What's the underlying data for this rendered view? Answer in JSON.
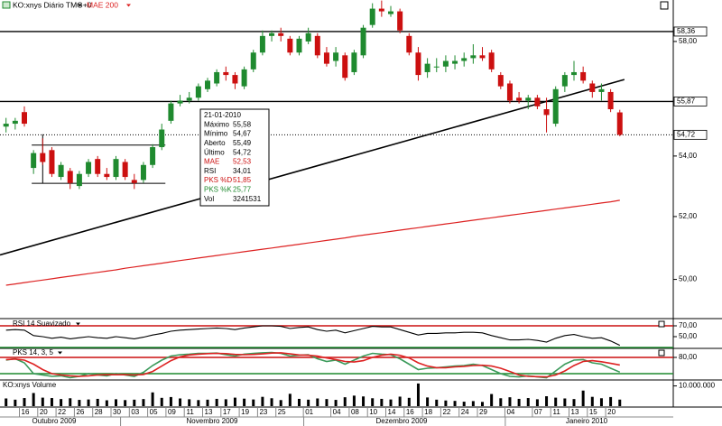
{
  "chart_data": [
    {
      "type": "candlestick",
      "title": "KO:xnys Diário TMG+0",
      "log": true,
      "ylim": [
        48.82,
        59.52
      ],
      "yticks": [
        {
          "value": 50,
          "label": "50,00"
        },
        {
          "value": 52,
          "label": "52,00"
        },
        {
          "value": 54,
          "label": "54,00"
        },
        {
          "value": 58,
          "label": "58,00"
        }
      ],
      "categories": [
        null,
        null,
        "16",
        null,
        "20",
        null,
        "22",
        null,
        "26",
        null,
        "28",
        null,
        "30",
        null,
        "03",
        null,
        "05",
        null,
        "09",
        null,
        "11",
        null,
        "13",
        null,
        "17",
        null,
        "19",
        null,
        "23",
        null,
        "25",
        null,
        null,
        "01",
        null,
        null,
        "04",
        null,
        "08",
        null,
        "10",
        null,
        "14",
        null,
        "16",
        null,
        "18",
        null,
        "22",
        null,
        "24",
        null,
        "29",
        null,
        null,
        "04",
        null,
        null,
        "07",
        null,
        "11",
        null,
        "13",
        null,
        "15",
        null,
        "20",
        null
      ],
      "months": [
        "Outubro 2009",
        "Novembro 2009",
        "Dezembro 2009",
        "Janeiro 2010"
      ],
      "up_color": "#1f8a2f",
      "down_color": "#cc1010",
      "ohlc": {
        "open": [
          55.0,
          55.1,
          55.5,
          53.6,
          54.1,
          54.2,
          53.3,
          53.5,
          53.0,
          53.4,
          53.9,
          53.4,
          53.3,
          53.8,
          53.2,
          53.2,
          53.7,
          54.3,
          55.2,
          55.8,
          55.9,
          56.0,
          56.3,
          56.5,
          56.9,
          56.8,
          56.4,
          57.0,
          57.6,
          58.2,
          58.3,
          58.1,
          57.6,
          58.0,
          58.2,
          57.6,
          57.3,
          57.5,
          56.9,
          57.5,
          58.6,
          59.2,
          59.0,
          59.1,
          58.2,
          57.6,
          56.9,
          57.1,
          57.1,
          57.2,
          57.3,
          57.4,
          57.5,
          57.6,
          56.8,
          56.5,
          56.0,
          55.9,
          56.0,
          55.6,
          55.1,
          56.4,
          56.8,
          56.9,
          56.5,
          56.2,
          56.2,
          55.49
        ],
        "high": [
          55.3,
          55.3,
          55.7,
          54.2,
          54.6,
          54.3,
          53.8,
          53.6,
          53.5,
          53.9,
          54.0,
          53.6,
          54.0,
          53.9,
          53.4,
          53.8,
          54.4,
          55.1,
          55.9,
          56.1,
          56.2,
          56.5,
          56.7,
          57.0,
          57.1,
          56.9,
          57.1,
          57.7,
          58.4,
          58.4,
          58.5,
          58.2,
          58.2,
          58.5,
          58.3,
          57.8,
          57.8,
          57.6,
          57.7,
          58.6,
          59.4,
          59.5,
          59.3,
          59.2,
          58.3,
          57.8,
          57.4,
          57.4,
          57.5,
          57.5,
          57.6,
          57.9,
          57.8,
          57.7,
          56.9,
          56.6,
          56.2,
          56.1,
          56.1,
          56.0,
          56.4,
          56.9,
          57.3,
          57.1,
          56.6,
          56.5,
          56.3,
          55.58
        ],
        "low": [
          54.8,
          54.9,
          55.0,
          53.4,
          53.7,
          53.3,
          53.2,
          52.9,
          52.9,
          53.3,
          53.3,
          53.2,
          53.2,
          53.2,
          52.9,
          53.1,
          53.6,
          54.2,
          55.1,
          55.7,
          55.8,
          55.9,
          56.2,
          56.4,
          56.6,
          56.3,
          56.3,
          56.9,
          57.5,
          58.0,
          58.0,
          57.5,
          57.5,
          57.9,
          57.4,
          57.1,
          57.1,
          56.6,
          56.8,
          57.4,
          58.5,
          58.9,
          58.9,
          58.3,
          57.5,
          56.6,
          56.7,
          56.9,
          56.9,
          57.0,
          57.1,
          57.2,
          57.3,
          56.9,
          56.3,
          55.8,
          55.8,
          55.6,
          55.6,
          54.8,
          55.0,
          56.2,
          56.6,
          56.5,
          56.0,
          55.9,
          55.5,
          54.67
        ],
        "close": [
          55.1,
          55.2,
          55.1,
          54.1,
          53.8,
          53.4,
          53.7,
          53.1,
          53.4,
          53.8,
          53.4,
          53.3,
          53.9,
          53.3,
          53.1,
          53.7,
          54.3,
          54.9,
          55.8,
          55.9,
          56.0,
          56.4,
          56.6,
          56.9,
          56.8,
          56.5,
          57.0,
          57.6,
          58.2,
          58.3,
          58.2,
          57.6,
          58.1,
          58.3,
          57.5,
          57.2,
          57.6,
          56.7,
          57.6,
          58.5,
          59.2,
          59.1,
          59.1,
          58.4,
          57.6,
          56.8,
          57.2,
          57.1,
          57.3,
          57.3,
          57.4,
          57.5,
          57.4,
          57.0,
          56.4,
          55.9,
          55.9,
          56.0,
          55.7,
          55.4,
          56.3,
          56.8,
          56.9,
          56.6,
          56.2,
          56.3,
          55.6,
          54.72
        ]
      },
      "series": [
        {
          "name": "MAE 200",
          "color": "#dd2222",
          "values": [
            49.82,
            49.86,
            49.9,
            49.94,
            49.98,
            50.02,
            50.06,
            50.1,
            50.14,
            50.18,
            50.22,
            50.26,
            50.3,
            50.35,
            50.39,
            50.43,
            50.47,
            50.51,
            50.55,
            50.59,
            50.63,
            50.67,
            50.71,
            50.75,
            50.79,
            50.83,
            50.87,
            50.91,
            50.95,
            50.99,
            51.03,
            51.07,
            51.11,
            51.15,
            51.19,
            51.23,
            51.27,
            51.31,
            51.36,
            51.4,
            51.44,
            51.48,
            51.52,
            51.56,
            51.6,
            51.64,
            51.68,
            51.72,
            51.76,
            51.8,
            51.84,
            51.88,
            51.92,
            51.96,
            52.0,
            52.04,
            52.08,
            52.12,
            52.16,
            52.2,
            52.24,
            52.28,
            52.32,
            52.36,
            52.4,
            52.44,
            52.48,
            52.53
          ]
        }
      ],
      "hlines": [
        {
          "value": 58.36,
          "label": "58,36",
          "style": "solid"
        },
        {
          "value": 55.87,
          "label": "55,87",
          "style": "solid"
        },
        {
          "value": 54.72,
          "label": "54,72",
          "style": "dotted"
        }
      ],
      "trendline": [
        50.77,
        56.64
      ],
      "range_lines": [
        54.37,
        53.09
      ],
      "info": {
        "date": "21-01-2010",
        "rows": [
          {
            "label": "Máximo",
            "value": "55,58",
            "color": "#000000"
          },
          {
            "label": "Mínimo",
            "value": "54,67",
            "color": "#000000"
          },
          {
            "label": "Aberto",
            "value": "55,49",
            "color": "#000000"
          },
          {
            "label": "Último",
            "value": "54,72",
            "color": "#000000"
          },
          {
            "label": "MAE",
            "value": "52,53",
            "color": "#cc1010"
          },
          {
            "label": "RSI",
            "value": "34,01",
            "color": "#000000"
          },
          {
            "label": "PKS %D",
            "value": "51,85",
            "color": "#cc1010"
          },
          {
            "label": "PKS %K",
            "value": "25,77",
            "color": "#1f8a2f"
          },
          {
            "label": "Vol",
            "value": "3241531",
            "color": "#000000"
          }
        ]
      }
    },
    {
      "type": "line",
      "title": "RSI 14 Suavizado",
      "ylim": [
        30,
        80
      ],
      "yticks": [
        {
          "value": 70,
          "label": "70,00"
        },
        {
          "value": 50,
          "label": "50,00"
        }
      ],
      "levels": [
        {
          "value": 70,
          "color": "#cc1010"
        },
        {
          "value": 30,
          "color": "#1f8a2f"
        }
      ],
      "series": [
        {
          "name": "RSI",
          "color": "#000000",
          "values": [
            62,
            63,
            62,
            52,
            50,
            47,
            49,
            46,
            48,
            50,
            48,
            47,
            50,
            48,
            46,
            49,
            53,
            56,
            60,
            62,
            63,
            64,
            65,
            66,
            65,
            63,
            66,
            68,
            70,
            70,
            69,
            65,
            67,
            68,
            63,
            60,
            62,
            57,
            61,
            65,
            69,
            68,
            68,
            63,
            58,
            53,
            56,
            56,
            57,
            57,
            58,
            58,
            57,
            52,
            48,
            44,
            44,
            45,
            43,
            40,
            47,
            52,
            54,
            50,
            47,
            48,
            42,
            34.01
          ]
        }
      ]
    },
    {
      "type": "line",
      "title": "PKS 14, 3, 5",
      "ylim": [
        0,
        110
      ],
      "yticks": [
        {
          "value": 80,
          "label": "80,00"
        }
      ],
      "levels": [
        {
          "value": 80,
          "color": "#cc1010"
        },
        {
          "value": 20,
          "color": "#1f8a2f"
        }
      ],
      "series": [
        {
          "name": "PKS %K",
          "color": "#3a9a5a",
          "values": [
            70,
            75,
            60,
            20,
            15,
            10,
            12,
            5,
            10,
            20,
            15,
            12,
            20,
            15,
            10,
            25,
            50,
            70,
            85,
            90,
            92,
            95,
            95,
            96,
            90,
            85,
            92,
            95,
            97,
            98,
            95,
            85,
            88,
            90,
            75,
            65,
            70,
            55,
            70,
            85,
            95,
            92,
            90,
            75,
            55,
            35,
            40,
            42,
            45,
            48,
            50,
            55,
            50,
            35,
            20,
            10,
            8,
            12,
            8,
            5,
            30,
            55,
            70,
            72,
            60,
            55,
            40,
            25.77
          ]
        },
        {
          "name": "PKS %D",
          "color": "#dd2222",
          "values": [
            72,
            74,
            70,
            55,
            35,
            20,
            15,
            12,
            10,
            12,
            15,
            16,
            16,
            16,
            15,
            17,
            28,
            48,
            68,
            82,
            89,
            92,
            94,
            95,
            94,
            91,
            90,
            91,
            93,
            96,
            97,
            93,
            89,
            88,
            85,
            78,
            72,
            65,
            63,
            68,
            80,
            88,
            92,
            88,
            78,
            60,
            48,
            42,
            42,
            45,
            47,
            50,
            51,
            48,
            40,
            28,
            15,
            10,
            9,
            8,
            15,
            30,
            50,
            65,
            68,
            64,
            58,
            51.85
          ]
        }
      ]
    },
    {
      "type": "volume",
      "title": "KO:xnys Volume",
      "ylim": [
        0,
        12500000
      ],
      "yticks": [
        {
          "value": 10000000,
          "label": "10.000.000"
        }
      ],
      "color": "#000000",
      "values": [
        3800000,
        3200000,
        4000000,
        6500000,
        4200000,
        4000000,
        3500000,
        3900000,
        3100000,
        3300000,
        3600000,
        2900000,
        3400000,
        3000000,
        3200000,
        3500000,
        6800000,
        4100000,
        4500000,
        3800000,
        3400000,
        3000000,
        3200000,
        3600000,
        3400000,
        4200000,
        3700000,
        3300000,
        4600000,
        3900000,
        3000000,
        6100000,
        3600000,
        3200000,
        3800000,
        3500000,
        3100000,
        4400000,
        5200000,
        4800000,
        3900000,
        3600000,
        3300000,
        4700000,
        4100000,
        11200000,
        4300000,
        3200000,
        2800000,
        2600000,
        2200000,
        2500000,
        2100000,
        6000000,
        3900000,
        4400000,
        3600000,
        4000000,
        3400000,
        4900000,
        4200000,
        3800000,
        3500000,
        7700000,
        4600000,
        3900000,
        4500000,
        3241531
      ]
    }
  ]
}
